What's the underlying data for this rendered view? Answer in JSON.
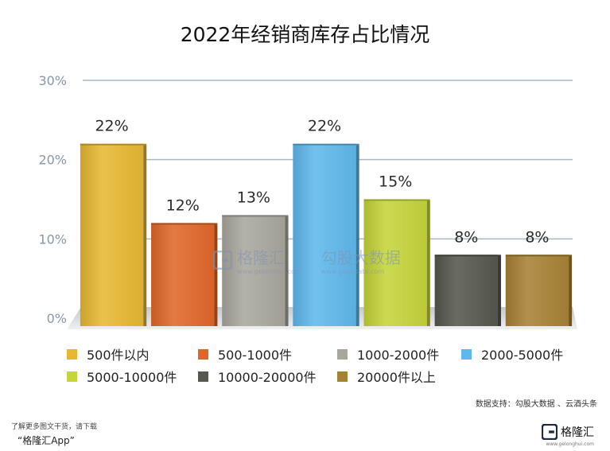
{
  "chart_data": {
    "type": "bar",
    "title": "2022年经销商库存占比情况",
    "categories": [
      "500件以内",
      "500-1000件",
      "1000-2000件",
      "2000-5000件",
      "5000-10000件",
      "10000-20000件",
      "20000件以上"
    ],
    "values": [
      22,
      12,
      13,
      22,
      15,
      8,
      8
    ],
    "value_labels": [
      "22%",
      "12%",
      "13%",
      "22%",
      "15%",
      "8%",
      "8%"
    ],
    "colors": [
      "#e7b832",
      "#e0672a",
      "#a9a79d",
      "#5fb8ec",
      "#c5d53a",
      "#56574e",
      "#a68234"
    ],
    "ylim": [
      0,
      30
    ],
    "yticks": [
      "0%",
      "10%",
      "20%",
      "30%"
    ],
    "xlabel": "",
    "ylabel": "",
    "grid": true,
    "legend_position": "bottom"
  },
  "watermark": {
    "brand": "格隆汇",
    "brand_sub": "www.gelonghui.com",
    "partner": "勾股大数据",
    "partner_sub": "www.gogudata.com"
  },
  "source": "数据支持：勾股大数据 、云酒头条",
  "footer": {
    "note": "了解更多图文干货，请下载",
    "app": "“格隆汇App”",
    "logo_text": "格隆汇",
    "logo_sub": "www.gelonghui.com"
  }
}
